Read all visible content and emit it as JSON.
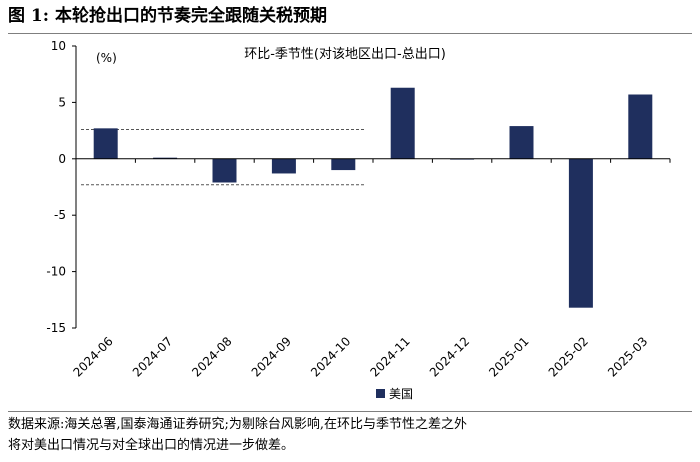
{
  "figure": {
    "title": "图 1:  本轮抢出口的节奏完全跟随关税预期",
    "source_line1": "数据来源:海关总署,国泰海通证券研究;为剔除台风影响,在环比与季节性之差之外",
    "source_line2": "将对美出口情况与对全球出口的情况进一步做差。"
  },
  "chart_data": {
    "type": "bar",
    "title": "环比-季节性(对该地区出口-总出口)",
    "unit_label": "(%)",
    "categories": [
      "2024-06",
      "2024-07",
      "2024-08",
      "2024-09",
      "2024-10",
      "2024-11",
      "2024-12",
      "2025-01",
      "2025-02",
      "2025-03"
    ],
    "series": [
      {
        "name": "美国",
        "color": "#1f2f5e",
        "values": [
          2.7,
          0.1,
          -2.1,
          -1.3,
          -1.0,
          6.3,
          0.0,
          2.9,
          -13.2,
          5.7
        ]
      }
    ],
    "ylim": [
      -15,
      10
    ],
    "yticks": [
      10,
      5,
      0,
      -5,
      -10,
      -15
    ],
    "reference_lines": [
      2.6,
      -2.3
    ],
    "legend_position": "bottom-center",
    "grid": false
  }
}
